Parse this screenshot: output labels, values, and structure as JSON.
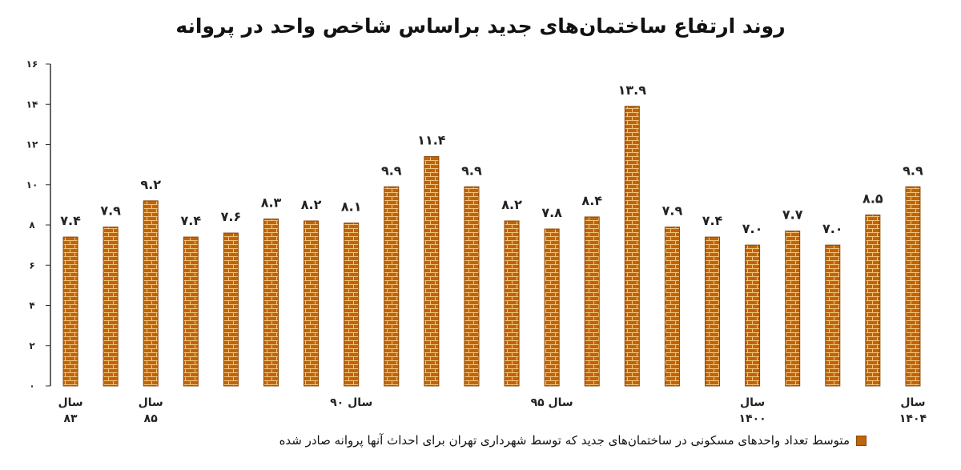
{
  "chart_data": {
    "type": "bar",
    "title": "روند ارتفاع ساختمان‌های جدید براساس شاخص واحد در پروانه",
    "values": [
      7.4,
      7.9,
      9.2,
      7.4,
      7.6,
      8.3,
      8.2,
      8.1,
      9.9,
      11.4,
      9.9,
      8.2,
      7.8,
      8.4,
      13.9,
      7.9,
      7.4,
      7.0,
      7.7,
      7.0,
      8.5,
      9.9
    ],
    "value_labels": [
      "۷.۴",
      "۷.۹",
      "۹.۲",
      "۷.۴",
      "۷.۶",
      "۸.۳",
      "۸.۲",
      "۸.۱",
      "۹.۹",
      "۱۱.۴",
      "۹.۹",
      "۸.۲",
      "۷.۸",
      "۸.۴",
      "۱۳.۹",
      "۷.۹",
      "۷.۴",
      "۷.۰",
      "۷.۷",
      "۷.۰",
      "۸.۵",
      "۹.۹"
    ],
    "x_labels": [
      {
        "index": 0,
        "lines": [
          "سال",
          "۸۳"
        ]
      },
      {
        "index": 2,
        "lines": [
          "سال",
          "۸۵"
        ]
      },
      {
        "index": 7,
        "lines": [
          "سال ۹۰"
        ]
      },
      {
        "index": 12,
        "lines": [
          "سال ۹۵"
        ]
      },
      {
        "index": 17,
        "lines": [
          "سال",
          "۱۴۰۰"
        ]
      },
      {
        "index": 21,
        "lines": [
          "سال",
          "۱۴۰۴"
        ]
      }
    ],
    "y_ticks": [
      0,
      2,
      4,
      6,
      8,
      10,
      12,
      14,
      16
    ],
    "y_tick_labels": [
      "۰",
      "۲",
      "۴",
      "۶",
      "۸",
      "۱۰",
      "۱۲",
      "۱۴",
      "۱۶"
    ],
    "ylim": [
      0,
      16
    ],
    "grid": false,
    "legend": {
      "position": "bottom-right",
      "label": "متوسط تعداد واحدهای مسکونی در ساختمان‌های جدید که توسط شهرداری تهران برای احداث آنها پروانه صادر شده"
    },
    "colors": {
      "bar": "#c0650c",
      "brick_line": "#f3c27a",
      "bar_border": "#8a4608"
    }
  }
}
